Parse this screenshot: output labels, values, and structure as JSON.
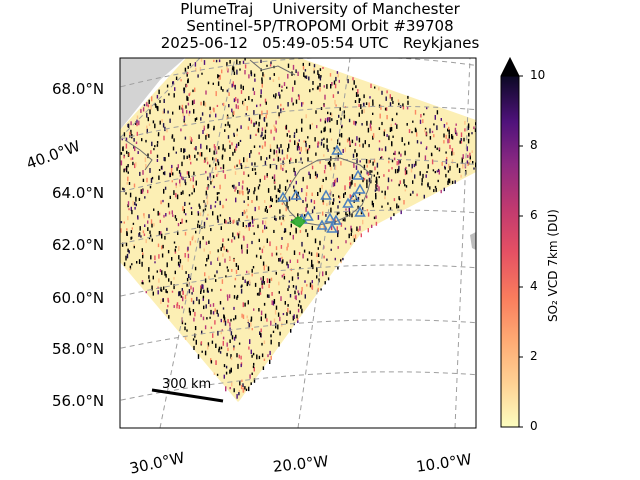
{
  "title": {
    "line1": "PlumeTraj    University of Manchester",
    "line2": "Sentinel-5P/TROPOMI Orbit #39708",
    "line3": "2025-06-12   05:49-05:54 UTC   Reykjanes"
  },
  "map": {
    "lat_labels": [
      "68.0°N",
      "64.0°N",
      "62.0°N",
      "60.0°N",
      "58.0°N",
      "56.0°N"
    ],
    "lon_labels_bottom": [
      "30.0°W",
      "20.0°W",
      "10.0°W"
    ],
    "lon_label_left": "40.0°W",
    "scale_bar": "300 km",
    "volcano_marker_color": "#4a7fbf",
    "source_marker_color": "#2ca02c",
    "land_color": "#d3d3d3"
  },
  "colorbar": {
    "label": "SO₂ VCD 7km (DU)",
    "ticks": [
      "10",
      "8",
      "6",
      "4",
      "2",
      "0"
    ],
    "range": [
      0,
      10
    ],
    "extend": "max",
    "colormap": "magma_r"
  }
}
